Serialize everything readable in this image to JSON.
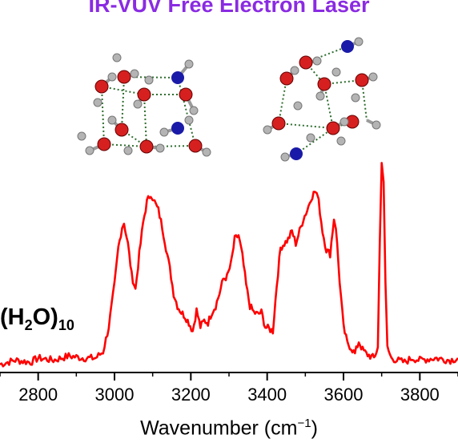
{
  "title": "IR-VUV Free Electron Laser",
  "species": {
    "prefix": "(H",
    "sub1": "2",
    "mid": "O)",
    "sub2": "10"
  },
  "chart_data": {
    "type": "line",
    "title": "IR-VUV Free Electron Laser",
    "xlabel": {
      "text": "Wavenumber (cm",
      "sup": "−1",
      "close": ")"
    },
    "ylabel": "",
    "xlim": [
      2700,
      3900
    ],
    "ylim": [
      0,
      1.0
    ],
    "xticks": [
      2800,
      3000,
      3200,
      3400,
      3600,
      3800
    ],
    "grid": false,
    "series": [
      {
        "color": "#ff0000",
        "x": [
          2700,
          2740,
          2780,
          2800,
          2840,
          2880,
          2920,
          2950,
          2970,
          2985,
          3000,
          3010,
          3020,
          3025,
          3035,
          3045,
          3055,
          3065,
          3075,
          3085,
          3095,
          3100,
          3105,
          3115,
          3125,
          3135,
          3145,
          3155,
          3165,
          3175,
          3185,
          3195,
          3205,
          3215,
          3225,
          3235,
          3245,
          3255,
          3265,
          3275,
          3285,
          3295,
          3305,
          3315,
          3325,
          3335,
          3345,
          3355,
          3365,
          3375,
          3385,
          3395,
          3405,
          3415,
          3425,
          3435,
          3445,
          3455,
          3465,
          3475,
          3485,
          3495,
          3505,
          3515,
          3525,
          3530,
          3535,
          3545,
          3555,
          3565,
          3575,
          3580,
          3590,
          3600,
          3610,
          3620,
          3630,
          3640,
          3650,
          3660,
          3670,
          3680,
          3690,
          3695,
          3700,
          3705,
          3710,
          3715,
          3725,
          3740,
          3760,
          3780,
          3800,
          3840,
          3880,
          3900
        ],
        "y": [
          0.02,
          0.04,
          0.03,
          0.05,
          0.04,
          0.06,
          0.05,
          0.05,
          0.08,
          0.2,
          0.4,
          0.58,
          0.68,
          0.7,
          0.6,
          0.45,
          0.38,
          0.55,
          0.7,
          0.8,
          0.84,
          0.82,
          0.8,
          0.76,
          0.68,
          0.58,
          0.48,
          0.36,
          0.3,
          0.27,
          0.25,
          0.22,
          0.18,
          0.28,
          0.2,
          0.23,
          0.22,
          0.27,
          0.3,
          0.36,
          0.43,
          0.44,
          0.5,
          0.62,
          0.64,
          0.54,
          0.4,
          0.3,
          0.27,
          0.26,
          0.27,
          0.2,
          0.19,
          0.18,
          0.4,
          0.58,
          0.6,
          0.62,
          0.66,
          0.6,
          0.66,
          0.72,
          0.76,
          0.82,
          0.85,
          0.84,
          0.8,
          0.66,
          0.57,
          0.55,
          0.72,
          0.68,
          0.42,
          0.2,
          0.12,
          0.1,
          0.07,
          0.13,
          0.09,
          0.07,
          0.06,
          0.05,
          0.1,
          0.6,
          1.0,
          0.9,
          0.4,
          0.1,
          0.05,
          0.04,
          0.03,
          0.05,
          0.04,
          0.05,
          0.04,
          0.05
        ]
      }
    ]
  },
  "colors": {
    "title": "#8a2be2",
    "trace": "#ff0000",
    "oxygen": "#d62020",
    "nitrogen": "#1a1aa8",
    "hydrogen": "#b4b4b4",
    "hbond": "#2f6e2f"
  }
}
